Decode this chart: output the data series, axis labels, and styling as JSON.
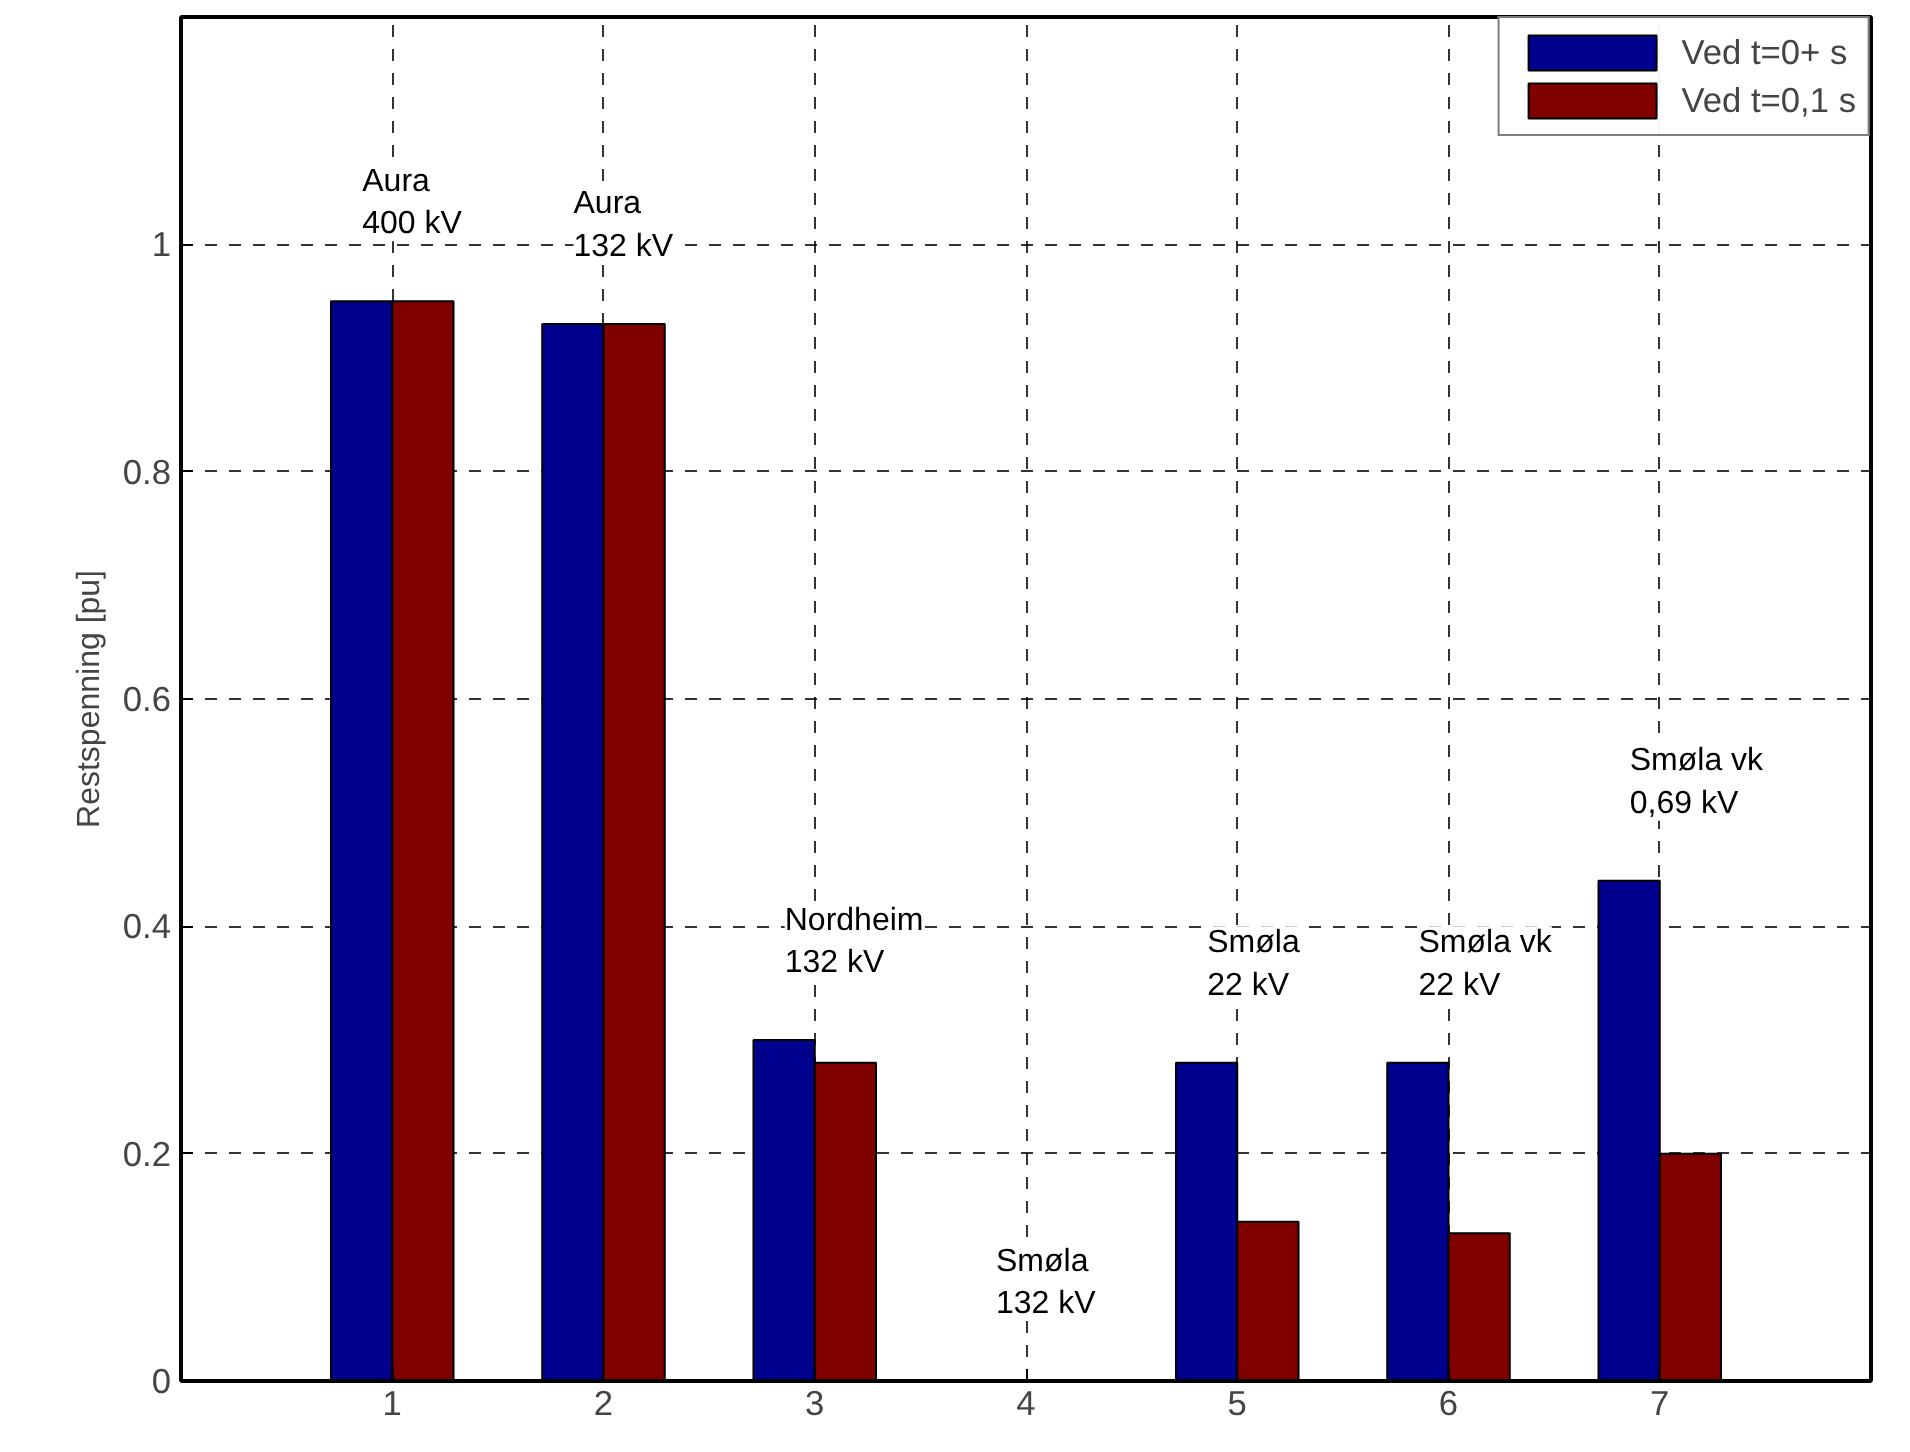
{
  "chart_data": {
    "type": "bar",
    "ylabel": "Restspenning [pu]",
    "x": [
      1,
      2,
      3,
      4,
      5,
      6,
      7
    ],
    "series": [
      {
        "name": "Ved t=0+ s",
        "color": "#00008f",
        "values": [
          0.95,
          0.93,
          0.3,
          0,
          0.28,
          0.28,
          0.44
        ]
      },
      {
        "name": "Ved t=0,1 s",
        "color": "#800000",
        "values": [
          0.95,
          0.93,
          0.28,
          0,
          0.14,
          0.13,
          0.2
        ]
      }
    ],
    "xlim": [
      0,
      8
    ],
    "xticks": [
      1,
      2,
      3,
      4,
      5,
      6,
      7
    ],
    "ylim": [
      0,
      1.2
    ],
    "yticks": [
      0,
      0.2,
      0.4,
      0.6,
      0.8,
      1
    ],
    "grid": true,
    "legend": "top right",
    "annotations": [
      {
        "text": "Aura\n400 kV",
        "x": 1,
        "y": 0.95
      },
      {
        "text": "Aura\n132 kV",
        "x": 2,
        "y": 0.93
      },
      {
        "text": "Nordheim\n132 kV",
        "x": 3,
        "y": 0.3
      },
      {
        "text": "Smøla\n132 kV",
        "x": 4,
        "y": 0
      },
      {
        "text": "Smøla\n22 kV",
        "x": 5,
        "y": 0.28
      },
      {
        "text": "Smøla vk\n22 kV",
        "x": 6,
        "y": 0.28
      },
      {
        "text": "Smøla vk\n0,69 kV",
        "x": 7,
        "y": 0.44
      }
    ]
  }
}
